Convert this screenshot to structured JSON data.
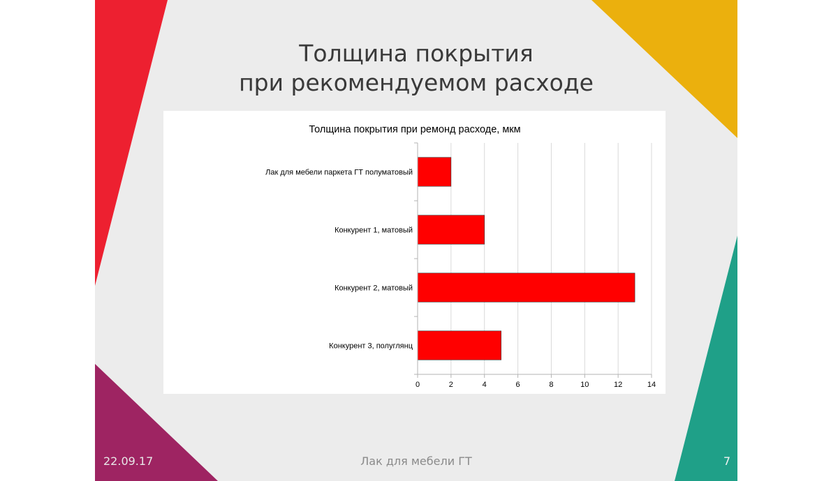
{
  "slide": {
    "title_lines": [
      "Толщина покрытия",
      "при рекомендуемом расходе"
    ],
    "footer_date": "22.09.17",
    "footer_title": "Лак для мебели ГТ",
    "page_number": "7",
    "colors": {
      "background": "#ececec",
      "red": "#ed2030",
      "yellow": "#ebb00d",
      "green": "#1fa088",
      "purple": "#9e2462"
    }
  },
  "chart_data": {
    "type": "bar",
    "orientation": "horizontal",
    "title": "Толщина покрытия при ремонд расходе, мкм",
    "categories": [
      "Лак для мебели паркета ГТ полуматовый",
      "Конкурент 1,  матовый",
      "Конкурент 2,  матовый",
      "Конкурент 3,   полуглянц"
    ],
    "values": [
      2,
      4,
      13,
      5
    ],
    "xlim": [
      0,
      14
    ],
    "xticks": [
      0,
      2,
      4,
      6,
      8,
      10,
      12,
      14
    ],
    "grid": true,
    "legend": "none",
    "bar_color": "#ff0000"
  }
}
